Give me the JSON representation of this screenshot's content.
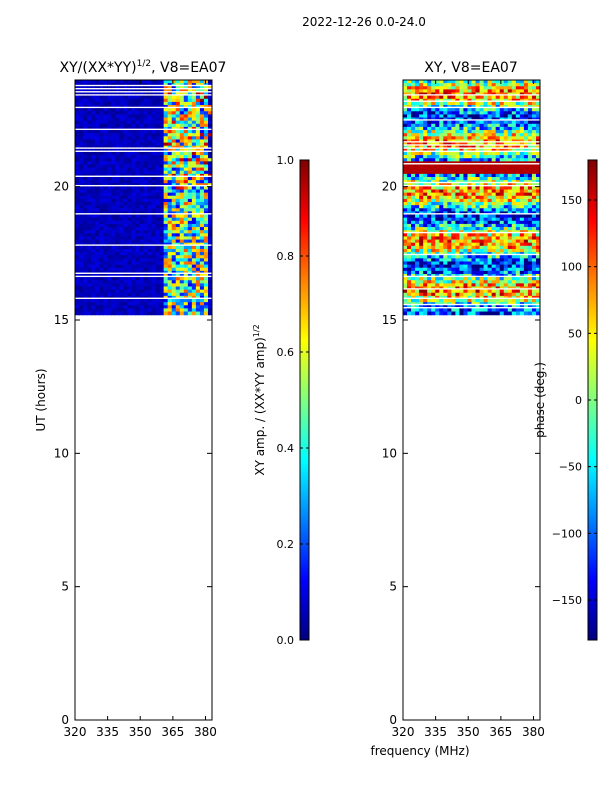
{
  "header": {
    "title": "2022-12-26 0.0-24.0"
  },
  "colors": {
    "jet": [
      "#00007f",
      "#0000ff",
      "#0080ff",
      "#00ffff",
      "#80ff80",
      "#ffff00",
      "#ff8000",
      "#ff0000",
      "#7f0000"
    ]
  },
  "chart_data": [
    {
      "type": "heatmap",
      "title": "XY/(XX*YY)^1/2, V8=EA07",
      "title_main": "XY/(XX*YY)",
      "title_sup": "1/2",
      "title_rest": ", V8=EA07",
      "xlabel": "",
      "ylabel": "UT (hours)",
      "xlim": [
        320,
        383
      ],
      "ylim": [
        0,
        24
      ],
      "xticks": [
        "320",
        "335",
        "350",
        "365",
        "380"
      ],
      "xtick_values": [
        320,
        335,
        350,
        365,
        380
      ],
      "yticks": [
        "0",
        "5",
        "10",
        "15",
        "20"
      ],
      "ytick_values": [
        0,
        5,
        10,
        15,
        20
      ],
      "data_range_y": [
        15.2,
        24.0
      ],
      "colorbar": {
        "label": "XY amp. / (XX*YY amp)^1/2",
        "label_main": "XY amp. / (XX*YY amp)",
        "label_sup": "1/2",
        "range": [
          0.0,
          1.0
        ],
        "ticks": [
          "0.0",
          "0.2",
          "0.4",
          "0.6",
          "0.8",
          "1.0"
        ],
        "tick_values": [
          0.0,
          0.2,
          0.4,
          0.6,
          0.8,
          1.0
        ]
      }
    },
    {
      "type": "heatmap",
      "title": "XY, V8=EA07",
      "xlabel": "frequency (MHz)",
      "ylabel": "",
      "xlim": [
        320,
        383
      ],
      "ylim": [
        0,
        24
      ],
      "xticks": [
        "320",
        "335",
        "350",
        "365",
        "380"
      ],
      "xtick_values": [
        320,
        335,
        350,
        365,
        380
      ],
      "yticks": [
        "0",
        "5",
        "10",
        "15",
        "20"
      ],
      "ytick_values": [
        0,
        5,
        10,
        15,
        20
      ],
      "data_range_y": [
        15.2,
        24.0
      ],
      "colorbar": {
        "label": "phase (deg.)",
        "range": [
          -180,
          180
        ],
        "ticks": [
          "150",
          "100",
          "50",
          "0",
          "−50",
          "−100",
          "−150"
        ],
        "tick_values": [
          150,
          100,
          50,
          0,
          -50,
          -100,
          -150
        ]
      }
    }
  ]
}
